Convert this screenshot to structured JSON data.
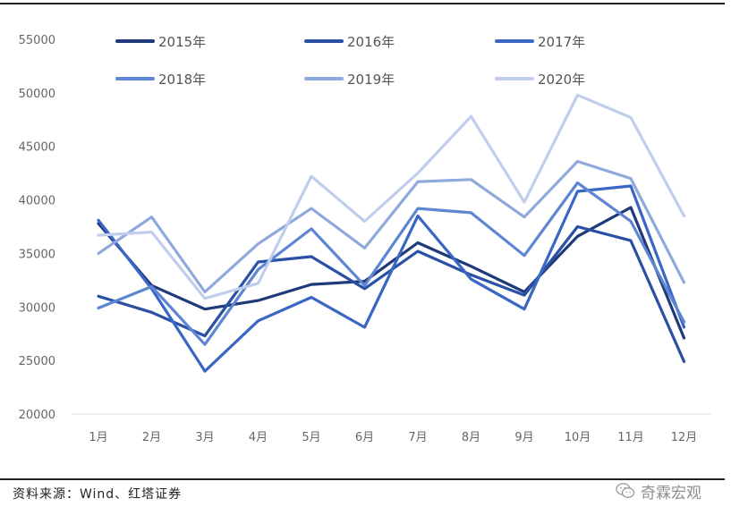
{
  "chart_data": {
    "type": "line",
    "categories": [
      "1月",
      "2月",
      "3月",
      "4月",
      "5月",
      "6月",
      "7月",
      "8月",
      "9月",
      "10月",
      "11月",
      "12月"
    ],
    "ylim": [
      20000,
      55000
    ],
    "yticks": [
      20000,
      25000,
      30000,
      35000,
      40000,
      45000,
      50000,
      55000
    ],
    "grid": false,
    "legend_position": "top",
    "series": [
      {
        "name": "2015年",
        "color": "#1f3a7a",
        "values": [
          37800,
          32000,
          29800,
          30600,
          32100,
          32400,
          36000,
          33800,
          31400,
          36600,
          39300,
          27100
        ]
      },
      {
        "name": "2016年",
        "color": "#2a50a6",
        "values": [
          31000,
          29500,
          27300,
          34200,
          34700,
          31700,
          35200,
          33000,
          31100,
          37500,
          36200,
          24900
        ]
      },
      {
        "name": "2017年",
        "color": "#3a66c4",
        "values": [
          38100,
          31700,
          24000,
          28700,
          30900,
          28100,
          38500,
          32600,
          29800,
          40800,
          41300,
          28100
        ]
      },
      {
        "name": "2018年",
        "color": "#5f86d2",
        "values": [
          29900,
          31900,
          26500,
          33500,
          37300,
          32000,
          39200,
          38800,
          34800,
          41600,
          38000,
          28600
        ]
      },
      {
        "name": "2019年",
        "color": "#8fa9dc",
        "values": [
          35000,
          38400,
          31400,
          35900,
          39200,
          35500,
          41700,
          41900,
          38400,
          43600,
          42000,
          32300
        ]
      },
      {
        "name": "2020年",
        "color": "#c0cdec",
        "values": [
          36700,
          37000,
          30800,
          32200,
          42200,
          38000,
          42500,
          47800,
          39800,
          49800,
          47700,
          38500
        ]
      }
    ]
  },
  "source": "资料来源：Wind、红塔证券",
  "watermark": {
    "text": "奇霖宏观",
    "icon": "wechat-icon"
  }
}
